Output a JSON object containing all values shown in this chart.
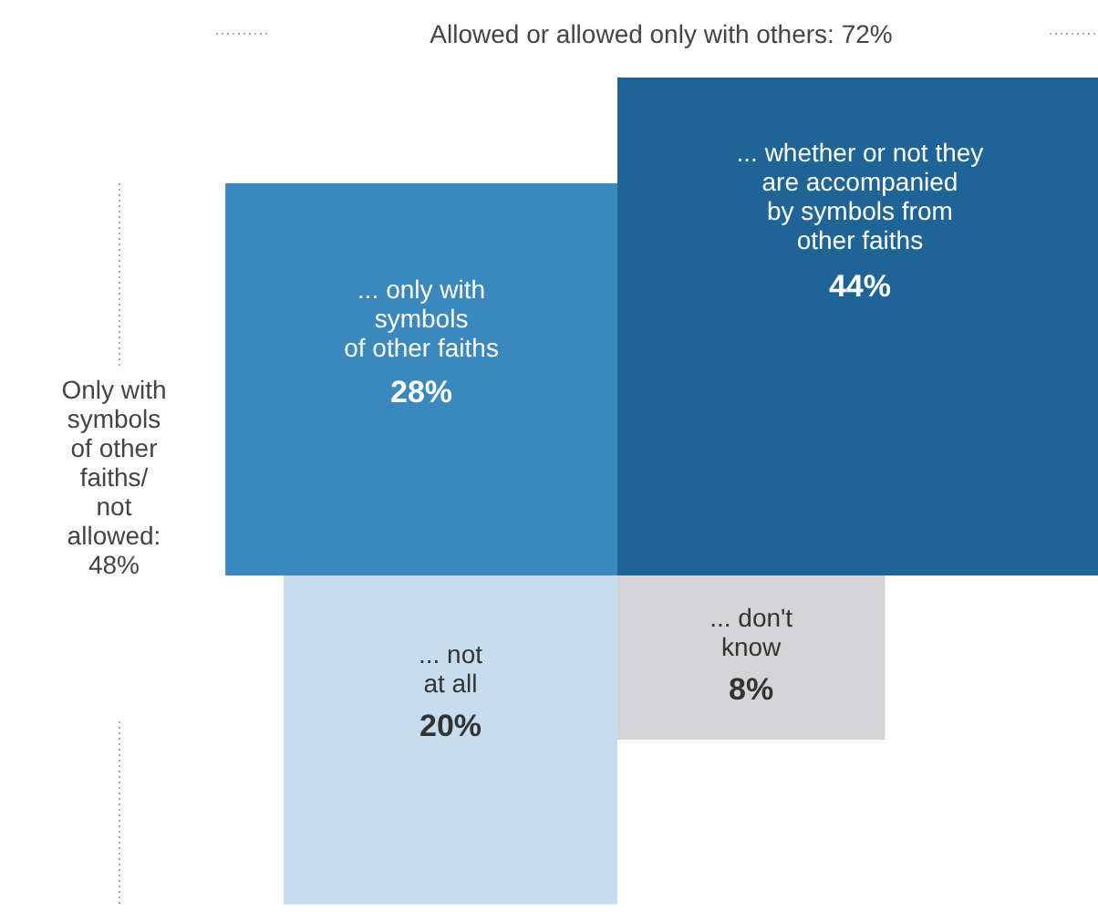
{
  "chart_data": {
    "type": "other",
    "categories": [
      "... only with\nsymbols\nof other faiths",
      "... whether or not they\nare accompanied\nby symbols from\nother faiths",
      "... not\nat all",
      "... don't\nknow"
    ],
    "values": [
      28,
      44,
      20,
      8
    ],
    "value_labels": [
      "28%",
      "44%",
      "20%",
      "8%"
    ],
    "colors": [
      "#3a88bd",
      "#1f6497",
      "#c6ddee",
      "#d4d4d6"
    ],
    "annotations": [
      "Allowed or allowed only with others: 72%",
      "Only with symbols of other faiths/ not allowed: 48%"
    ]
  }
}
